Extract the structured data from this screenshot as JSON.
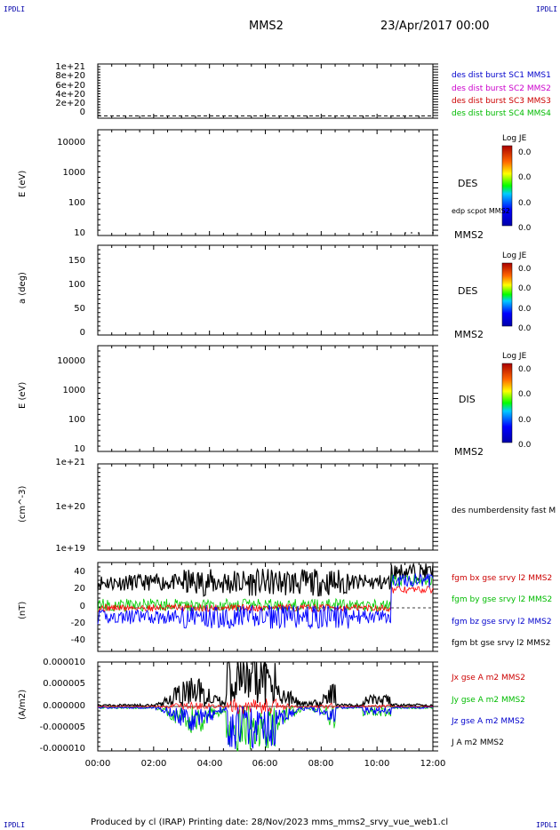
{
  "corners": {
    "tl": "IPDLI",
    "tr": "IPDLI",
    "bl": "IPDLI",
    "br": "IPDLI"
  },
  "header": {
    "spacecraft": "MMS2",
    "date": "23/Apr/2017 00:00"
  },
  "footer": "Produced by cl (IRAP)   Printing date: 28/Nov/2023   mms_mms2_srvy_vue_web1.cl",
  "colors": {
    "mms1": "#0000cc",
    "mms2": "#cc00cc",
    "mms3": "#cc0000",
    "mms4": "#00bb00",
    "x": "#ff0000",
    "y": "#00cc00",
    "z": "#0000ff",
    "t": "#000000"
  },
  "chart_data": [
    {
      "type": "line",
      "id": "panel1",
      "ylim": [
        -50000000000000000000,
        1100000000000000000000
      ],
      "yticks": [
        "1e+21",
        "8e+20",
        "6e+20",
        "4e+20",
        "2e+20",
        "0"
      ],
      "legend": [
        "des dist burst SC1 MMS1",
        "des dist burst SC2 MMS2",
        "des dist burst SC3 MMS3",
        "des dist burst SC4 MMS4"
      ]
    },
    {
      "type": "heatmap",
      "id": "panel2",
      "ylabel": "E (eV)",
      "scale": "log",
      "ylim": [
        10,
        15000
      ],
      "yticks": [
        "10000",
        "1000",
        "100",
        "10"
      ],
      "label": "DES",
      "sub": "edp scpot MMS2",
      "sc": "MMS2",
      "colorbar": {
        "title": "Log JE",
        "values": [
          "0.0",
          "0.0",
          "0.0",
          "0.0"
        ]
      }
    },
    {
      "type": "heatmap",
      "id": "panel3",
      "ylabel": "a (deg)",
      "ylim": [
        0,
        180
      ],
      "yticks": [
        "150",
        "100",
        "50",
        "0"
      ],
      "label": "DES",
      "sc": "MMS2",
      "colorbar": {
        "title": "Log JE",
        "values": [
          "0.0",
          "0.0",
          "0.0",
          "0.0"
        ]
      }
    },
    {
      "type": "heatmap",
      "id": "panel4",
      "ylabel": "E (eV)",
      "scale": "log",
      "ylim": [
        10,
        15000
      ],
      "yticks": [
        "10000",
        "1000",
        "100",
        "10"
      ],
      "label": "DIS",
      "sc": "MMS2",
      "colorbar": {
        "title": "Log JE",
        "values": [
          "0.0",
          "0.0",
          "0.0",
          "0.0"
        ]
      }
    },
    {
      "type": "line",
      "id": "panel5",
      "ylabel": "(cm^-3)",
      "scale": "log",
      "ylim": [
        1e+19,
        1e+21
      ],
      "yticks": [
        "1e+21",
        "1e+20",
        "1e+19"
      ],
      "legend": [
        "des numberdensity fast M"
      ]
    },
    {
      "type": "line",
      "id": "panel6",
      "ylabel": "(nT)",
      "ylim": [
        -48,
        50
      ],
      "yticks": [
        "40",
        "20",
        "0",
        "-20",
        "-40"
      ],
      "legend": [
        "fgm bx gse srvy l2 MMS2",
        "fgm by gse srvy l2 MMS2",
        "fgm bz gse srvy l2 MMS2",
        "fgm bt gse srvy l2 MMS2"
      ]
    },
    {
      "type": "line",
      "id": "panel7",
      "ylabel": "(A/m2)",
      "ylim": [
        -1e-05,
        1e-05
      ],
      "yticks": [
        "0.000010",
        "0.000005",
        "0.000000",
        "-0.000005",
        "-0.000010"
      ],
      "legend": [
        "Jx gse A m2 MMS2",
        "Jy gse A m2 MMS2",
        "Jz gse A m2 MMS2",
        "J A m2 MMS2"
      ]
    }
  ],
  "xaxis": {
    "xlim": [
      0,
      12
    ],
    "ticks": [
      "00:00",
      "02:00",
      "04:00",
      "06:00",
      "08:00",
      "10:00",
      "12:00"
    ]
  }
}
